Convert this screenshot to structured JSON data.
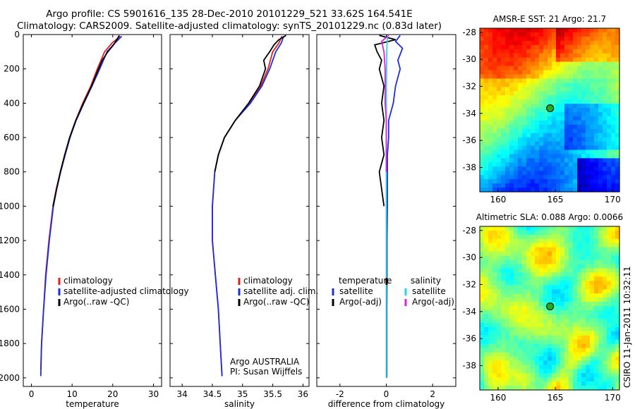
{
  "header": {
    "line1": "Argo profile: CS 5901616_135 28-Dec-2010 20101229_521 33.62S 164.541E",
    "line2": "Climatology: CARS2009. Satellite-adjusted climatology: synTS_20101229.nc (0.83d later)"
  },
  "side_label": "CSIRO 11-Jan-2011 10:32:11",
  "colors": {
    "climatology": "#e02020",
    "satellite": "#1f2fd8",
    "argo": "#000000",
    "salinity_satellite": "#22d8e8",
    "salinity_argo": "#e020e0",
    "marker_fill": "#22aa22"
  },
  "chart_data": [
    {
      "id": "temperature",
      "type": "line",
      "xlabel": "temperature",
      "xlim": [
        -2,
        32
      ],
      "ylim": [
        2050,
        0
      ],
      "xticks": [
        0,
        10,
        20,
        30
      ],
      "yticks": [
        0,
        200,
        400,
        600,
        800,
        1000,
        1200,
        1400,
        1600,
        1800,
        2000
      ],
      "legend": [
        "climatology",
        "satellite-adjusted climatology",
        "Argo(..raw -QC)"
      ],
      "series": [
        {
          "name": "climatology",
          "color": "#e02020",
          "depth": [
            10,
            50,
            100,
            200,
            300,
            400,
            500,
            600,
            700,
            800,
            900,
            1000,
            1200,
            1400,
            1600,
            1800,
            1950
          ],
          "values": [
            21.8,
            19.8,
            18.0,
            16.2,
            14.6,
            12.6,
            10.9,
            9.4,
            8.2,
            7.1,
            6.1,
            5.3,
            4.3,
            3.5,
            3.0,
            2.5,
            2.3
          ]
        },
        {
          "name": "satellite-adjusted climatology",
          "color": "#1f2fd8",
          "depth": [
            10,
            50,
            100,
            200,
            300,
            400,
            500,
            600,
            700,
            800,
            900,
            1000,
            1200,
            1400,
            1600,
            1800,
            1990
          ],
          "values": [
            22.2,
            20.5,
            18.6,
            16.8,
            14.9,
            12.9,
            11.0,
            9.5,
            8.3,
            7.2,
            6.2,
            5.4,
            4.4,
            3.6,
            3.0,
            2.5,
            2.3
          ]
        },
        {
          "name": "Argo(..raw -QC)",
          "color": "#000000",
          "depth": [
            5,
            30,
            60,
            100,
            150,
            200,
            300,
            400,
            500,
            600,
            700,
            800,
            1000
          ],
          "values": [
            21.6,
            21.0,
            20.2,
            18.8,
            17.4,
            16.5,
            14.8,
            12.8,
            10.9,
            9.4,
            8.2,
            7.1,
            5.3
          ]
        }
      ]
    },
    {
      "id": "salinity",
      "type": "line",
      "xlabel": "salinity",
      "xlim": [
        33.8,
        36.1
      ],
      "ylim": [
        2050,
        0
      ],
      "xticks": [
        34,
        34.5,
        35,
        35.5,
        36
      ],
      "legend": [
        "climatology",
        "satellite adj. clim.",
        "Argo(..raw -QC)"
      ],
      "annotation": [
        "Argo AUSTRALIA",
        "PI: Susan Wijffels"
      ],
      "series": [
        {
          "name": "climatology",
          "color": "#e02020",
          "depth": [
            10,
            50,
            100,
            200,
            300,
            400,
            500,
            600,
            700,
            800,
            1000,
            1200,
            1400,
            1600,
            1800,
            1990
          ],
          "values": [
            35.65,
            35.6,
            35.5,
            35.42,
            35.3,
            35.12,
            34.88,
            34.7,
            34.6,
            34.54,
            34.5,
            34.5,
            34.55,
            34.6,
            34.63,
            34.66
          ]
        },
        {
          "name": "satellite adj. clim.",
          "color": "#1f2fd8",
          "depth": [
            10,
            50,
            100,
            200,
            300,
            400,
            500,
            600,
            700,
            800,
            1000,
            1200,
            1400,
            1600,
            1800,
            1990
          ],
          "values": [
            35.68,
            35.64,
            35.55,
            35.45,
            35.32,
            35.13,
            34.88,
            34.7,
            34.6,
            34.54,
            34.5,
            34.5,
            34.55,
            34.6,
            34.63,
            34.66
          ]
        },
        {
          "name": "Argo(..raw -QC)",
          "color": "#000000",
          "depth": [
            5,
            30,
            60,
            100,
            150,
            200,
            300,
            400,
            500,
            600,
            700,
            800
          ],
          "values": [
            35.72,
            35.6,
            35.52,
            35.45,
            35.35,
            35.38,
            35.28,
            35.1,
            34.88,
            34.7,
            34.6,
            34.54
          ]
        }
      ]
    },
    {
      "id": "difference",
      "type": "line",
      "xlabel": "difference from climatology",
      "xlim": [
        -3,
        3
      ],
      "ylim": [
        2050,
        0
      ],
      "xticks": [
        -2,
        0,
        2
      ],
      "legend_title_left": "temperature",
      "legend_title_right": "salinity",
      "legend": [
        "satellite",
        "Argo(-adj)",
        "satellite",
        "Argo(-adj)"
      ],
      "series": [
        {
          "name": "temperature satellite",
          "color": "#1f2fd8",
          "depth": [
            5,
            40,
            80,
            150,
            200,
            300,
            400,
            500,
            600,
            700,
            800,
            1000,
            1200,
            1400,
            1600,
            1800,
            2000
          ],
          "values": [
            0.6,
            0.4,
            0.7,
            0.5,
            0.6,
            0.4,
            0.3,
            0.1,
            0.1,
            0.05,
            0.05,
            0.05,
            0.03,
            0.03,
            0.02,
            0.02,
            0.02
          ]
        },
        {
          "name": "temperature Argo(-adj)",
          "color": "#000000",
          "depth": [
            5,
            30,
            60,
            100,
            150,
            200,
            300,
            400,
            500,
            600,
            700,
            800,
            900,
            1000
          ],
          "values": [
            -0.3,
            0.4,
            -0.5,
            -0.4,
            -0.2,
            -0.3,
            -0.1,
            -0.2,
            -0.1,
            -0.2,
            -0.1,
            -0.3,
            -0.2,
            -0.1
          ]
        },
        {
          "name": "salinity satellite",
          "color": "#22d8e8",
          "depth": [
            5,
            100,
            300,
            600,
            1000,
            1400,
            1800,
            2000
          ],
          "values": [
            0.05,
            0.02,
            0.0,
            0.0,
            0.0,
            0.0,
            0.0,
            0.0
          ]
        },
        {
          "name": "salinity Argo(-adj)",
          "color": "#e020e0",
          "depth": [
            5,
            40,
            100,
            200,
            300,
            400,
            500,
            600,
            700,
            800
          ],
          "values": [
            0.1,
            -0.2,
            -0.1,
            -0.05,
            -0.05,
            -0.05,
            0.0,
            0.0,
            0.0,
            0.0
          ]
        }
      ]
    },
    {
      "id": "sst_map",
      "type": "heatmap",
      "title": "AMSR-E SST: 21 Argo: 21.7",
      "xlim": [
        158.4,
        170.6
      ],
      "ylim": [
        -39.8,
        -27.7
      ],
      "xticks": [
        160,
        165,
        170
      ],
      "yticks": [
        -28,
        -30,
        -32,
        -34,
        -36,
        -38
      ],
      "marker": {
        "lon": 164.54,
        "lat": -33.62
      }
    },
    {
      "id": "sla_map",
      "type": "heatmap",
      "title": "Altimetric SLA: 0.088 Argo: 0.0066",
      "xlim": [
        158.4,
        170.6
      ],
      "ylim": [
        -39.8,
        -27.7
      ],
      "xticks": [
        160,
        165,
        170
      ],
      "yticks": [
        -28,
        -30,
        -32,
        -34,
        -36,
        -38
      ],
      "marker": {
        "lon": 164.54,
        "lat": -33.62
      }
    }
  ]
}
